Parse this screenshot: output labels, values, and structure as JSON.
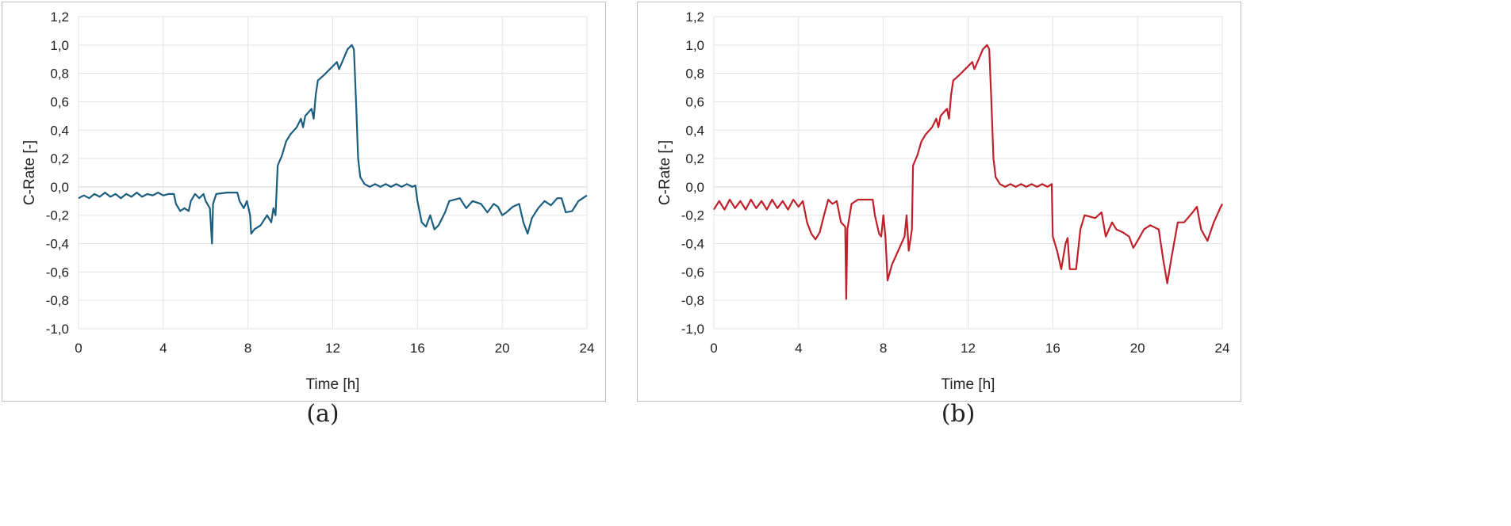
{
  "chart_data": [
    {
      "type": "line",
      "panel_label": "(a)",
      "xlabel": "Time [h]",
      "ylabel": "C-Rate [-]",
      "xlim": [
        0,
        24
      ],
      "ylim": [
        -1.0,
        1.2
      ],
      "grid": true,
      "color": "#1b5e80",
      "xticks": [
        "0",
        "4",
        "8",
        "12",
        "16",
        "20",
        "24"
      ],
      "yticks": [
        "-1,0",
        "-0,8",
        "-0,6",
        "-0,4",
        "-0,2",
        "0,0",
        "0,2",
        "0,4",
        "0,6",
        "0,8",
        "1,0",
        "1,2"
      ],
      "x": [
        0,
        0.25,
        0.5,
        0.75,
        1,
        1.25,
        1.5,
        1.75,
        2,
        2.25,
        2.5,
        2.75,
        3,
        3.25,
        3.5,
        3.75,
        4,
        4.25,
        4.5,
        4.6,
        4.8,
        5.0,
        5.2,
        5.3,
        5.5,
        5.7,
        5.9,
        6.0,
        6.2,
        6.3,
        6.35,
        6.5,
        7.0,
        7.5,
        7.6,
        7.8,
        7.95,
        8.1,
        8.15,
        8.3,
        8.6,
        8.9,
        9.1,
        9.2,
        9.3,
        9.4,
        9.6,
        9.8,
        10.0,
        10.3,
        10.5,
        10.6,
        10.7,
        11.0,
        11.1,
        11.2,
        11.3,
        11.6,
        12.0,
        12.2,
        12.3,
        12.5,
        12.7,
        12.9,
        13.0,
        13.1,
        13.2,
        13.3,
        13.5,
        13.75,
        14,
        14.25,
        14.5,
        14.75,
        15,
        15.25,
        15.5,
        15.75,
        15.9,
        16.0,
        16.2,
        16.4,
        16.6,
        16.8,
        17.0,
        17.3,
        17.5,
        18.0,
        18.3,
        18.6,
        19.0,
        19.3,
        19.6,
        19.8,
        20.0,
        20.2,
        20.5,
        20.8,
        21.0,
        21.2,
        21.4,
        21.7,
        22.0,
        22.3,
        22.6,
        22.8,
        23.0,
        23.3,
        23.6,
        24
      ],
      "y": [
        -0.08,
        -0.06,
        -0.08,
        -0.05,
        -0.07,
        -0.04,
        -0.07,
        -0.05,
        -0.08,
        -0.05,
        -0.07,
        -0.04,
        -0.07,
        -0.05,
        -0.06,
        -0.04,
        -0.06,
        -0.05,
        -0.05,
        -0.12,
        -0.17,
        -0.15,
        -0.17,
        -0.1,
        -0.05,
        -0.08,
        -0.05,
        -0.1,
        -0.15,
        -0.4,
        -0.12,
        -0.05,
        -0.04,
        -0.04,
        -0.1,
        -0.15,
        -0.1,
        -0.2,
        -0.33,
        -0.3,
        -0.27,
        -0.2,
        -0.25,
        -0.15,
        -0.2,
        0.15,
        0.22,
        0.32,
        0.37,
        0.42,
        0.48,
        0.42,
        0.5,
        0.55,
        0.48,
        0.65,
        0.75,
        0.79,
        0.85,
        0.88,
        0.83,
        0.9,
        0.97,
        1.0,
        0.97,
        0.6,
        0.2,
        0.07,
        0.02,
        0.0,
        0.02,
        0.0,
        0.02,
        0.0,
        0.02,
        0.0,
        0.02,
        0.0,
        0.01,
        -0.1,
        -0.25,
        -0.28,
        -0.2,
        -0.3,
        -0.27,
        -0.18,
        -0.1,
        -0.08,
        -0.15,
        -0.1,
        -0.12,
        -0.18,
        -0.12,
        -0.14,
        -0.2,
        -0.18,
        -0.14,
        -0.12,
        -0.25,
        -0.33,
        -0.22,
        -0.15,
        -0.1,
        -0.13,
        -0.08,
        -0.08,
        -0.18,
        -0.17,
        -0.1,
        -0.06
      ]
    },
    {
      "type": "line",
      "panel_label": "(b)",
      "xlabel": "Time [h]",
      "ylabel": "C-Rate [-]",
      "xlim": [
        0,
        24
      ],
      "ylim": [
        -1.0,
        1.2
      ],
      "grid": true,
      "color": "#c0202a",
      "xticks": [
        "0",
        "4",
        "8",
        "12",
        "16",
        "20",
        "24"
      ],
      "yticks": [
        "-1,0",
        "-0,8",
        "-0,6",
        "-0,4",
        "-0,2",
        "0,0",
        "0,2",
        "0,4",
        "0,6",
        "0,8",
        "1,0",
        "1,2"
      ],
      "x": [
        0,
        0.25,
        0.5,
        0.75,
        1,
        1.25,
        1.5,
        1.75,
        2,
        2.25,
        2.5,
        2.75,
        3,
        3.25,
        3.5,
        3.75,
        4,
        4.2,
        4.4,
        4.6,
        4.8,
        5.0,
        5.2,
        5.4,
        5.6,
        5.8,
        6.0,
        6.2,
        6.25,
        6.3,
        6.5,
        6.8,
        7.5,
        7.6,
        7.8,
        7.9,
        8.0,
        8.1,
        8.2,
        8.4,
        8.7,
        9.0,
        9.1,
        9.2,
        9.35,
        9.4,
        9.6,
        9.8,
        10.0,
        10.3,
        10.5,
        10.6,
        10.7,
        11.0,
        11.1,
        11.2,
        11.3,
        11.6,
        12.0,
        12.2,
        12.3,
        12.5,
        12.7,
        12.9,
        13.0,
        13.1,
        13.2,
        13.3,
        13.5,
        13.75,
        14,
        14.25,
        14.5,
        14.75,
        15,
        15.25,
        15.5,
        15.75,
        15.95,
        16.0,
        16.2,
        16.4,
        16.6,
        16.7,
        16.8,
        17.1,
        17.3,
        17.5,
        18.0,
        18.3,
        18.5,
        18.8,
        19.0,
        19.3,
        19.6,
        19.8,
        20.0,
        20.3,
        20.6,
        21.0,
        21.2,
        21.4,
        21.6,
        21.9,
        22.2,
        22.6,
        22.8,
        23.0,
        23.3,
        23.6,
        23.9,
        24
      ],
      "y": [
        -0.16,
        -0.1,
        -0.16,
        -0.09,
        -0.15,
        -0.1,
        -0.16,
        -0.09,
        -0.15,
        -0.1,
        -0.16,
        -0.09,
        -0.15,
        -0.1,
        -0.16,
        -0.09,
        -0.14,
        -0.1,
        -0.25,
        -0.33,
        -0.37,
        -0.32,
        -0.2,
        -0.09,
        -0.12,
        -0.1,
        -0.25,
        -0.28,
        -0.79,
        -0.3,
        -0.12,
        -0.09,
        -0.09,
        -0.2,
        -0.33,
        -0.35,
        -0.2,
        -0.35,
        -0.66,
        -0.55,
        -0.45,
        -0.35,
        -0.2,
        -0.45,
        -0.3,
        0.15,
        0.22,
        0.32,
        0.37,
        0.42,
        0.48,
        0.42,
        0.5,
        0.55,
        0.48,
        0.65,
        0.75,
        0.79,
        0.85,
        0.88,
        0.83,
        0.9,
        0.97,
        1.0,
        0.97,
        0.6,
        0.2,
        0.07,
        0.02,
        0.0,
        0.02,
        0.0,
        0.02,
        0.0,
        0.02,
        0.0,
        0.02,
        0.0,
        0.02,
        -0.35,
        -0.45,
        -0.58,
        -0.4,
        -0.36,
        -0.58,
        -0.58,
        -0.3,
        -0.2,
        -0.22,
        -0.18,
        -0.35,
        -0.25,
        -0.3,
        -0.32,
        -0.35,
        -0.43,
        -0.38,
        -0.3,
        -0.27,
        -0.3,
        -0.5,
        -0.68,
        -0.5,
        -0.25,
        -0.25,
        -0.18,
        -0.14,
        -0.3,
        -0.38,
        -0.25,
        -0.15,
        -0.12
      ]
    }
  ]
}
